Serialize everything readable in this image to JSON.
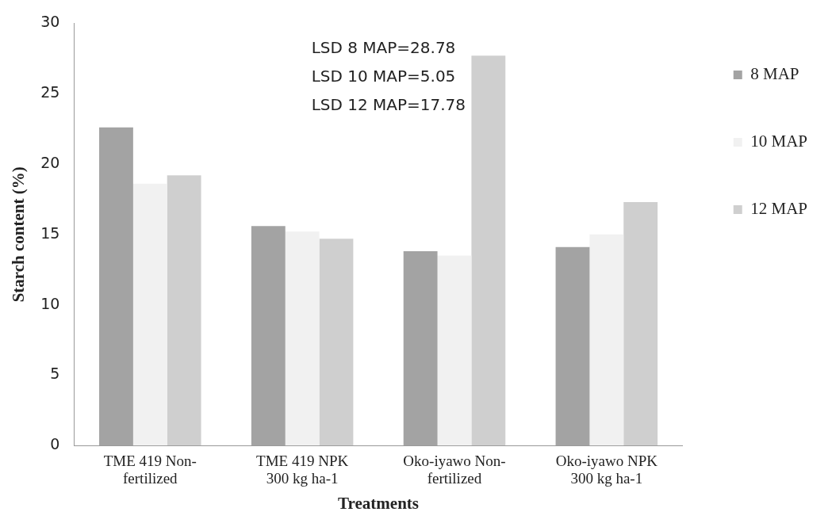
{
  "chart_data": {
    "type": "bar",
    "xlabel": "Treatments",
    "ylabel": "Starch content (%)",
    "categories": [
      "TME 419 Non-fertilized",
      "TME 419 NPK 300 kg ha-1",
      "Oko-iyawo Non-fertilized",
      "Oko-iyawo NPK 300 kg ha-1"
    ],
    "series": [
      {
        "name": "8 MAP",
        "color": "#a3a3a3",
        "values": [
          22.6,
          15.6,
          13.8,
          14.1
        ]
      },
      {
        "name": "10 MAP",
        "color": "#f1f1f1",
        "values": [
          18.6,
          15.2,
          13.5,
          15.0
        ]
      },
      {
        "name": "12 MAP",
        "color": "#cfcfcf",
        "values": [
          19.2,
          14.7,
          27.7,
          17.3
        ]
      }
    ],
    "ylim": [
      0,
      30
    ],
    "yticks": [
      0,
      5,
      10,
      15,
      20,
      25,
      30
    ],
    "grid": false,
    "legend": "right",
    "annotations": [
      "LSD 8 MAP=28.78",
      "LSD 10 MAP=5.05",
      "LSD 12 MAP=17.78"
    ]
  }
}
